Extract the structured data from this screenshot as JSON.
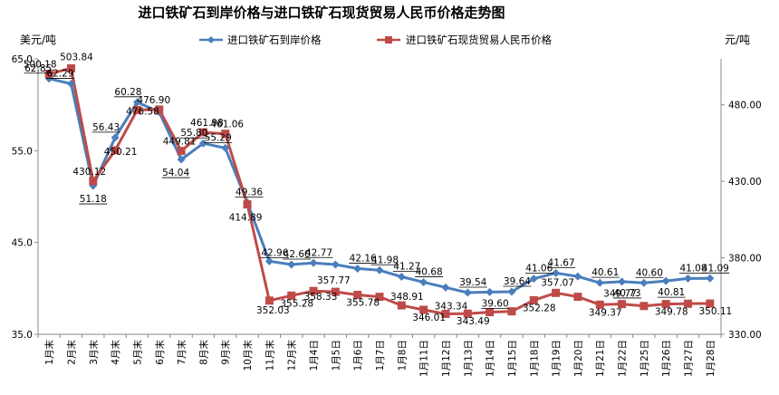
{
  "chart_data": {
    "type": "line",
    "title": "进口铁矿石到岸价格与进口铁矿石现货贸易人民币价格走势图",
    "left_unit": "美元/吨",
    "right_unit": "元/吨",
    "categories": [
      "1月末",
      "2月末",
      "3月末",
      "4月末",
      "5月末",
      "6月末",
      "7月末",
      "8月末",
      "9月末",
      "10月末",
      "11月末",
      "12月末",
      "1月4日",
      "1月5日",
      "1月6日",
      "1月7日",
      "1月8日",
      "1月11日",
      "1月12日",
      "1月13日",
      "1月14日",
      "1月15日",
      "1月18日",
      "1月19日",
      "1月20日",
      "1月21日",
      "1月22日",
      "1月25日",
      "1月26日",
      "1月27日",
      "1月28日"
    ],
    "left_axis": {
      "min": 35.0,
      "max": 65.0,
      "ticks": [
        "35.0",
        "45.0",
        "55.0",
        "65.0"
      ]
    },
    "right_axis": {
      "min": 330.0,
      "max": 510.0,
      "ticks": [
        "330.00",
        "380.00",
        "430.00",
        "480.00"
      ]
    },
    "legend_position": "top",
    "grid": false,
    "series": [
      {
        "name": "进口铁矿石到岸价格",
        "axis": "left",
        "color": "#4a7ebb",
        "marker": "diamond",
        "values": [
          62.85,
          62.29,
          51.18,
          56.43,
          60.28,
          59.2,
          54.04,
          55.8,
          55.29,
          49.36,
          42.96,
          42.6,
          42.77,
          42.6,
          42.16,
          41.98,
          41.27,
          40.68,
          40.1,
          39.54,
          39.6,
          39.64,
          41.06,
          41.67,
          41.3,
          40.61,
          40.73,
          40.6,
          40.81,
          41.08,
          41.09
        ],
        "labels": [
          "62.85",
          "62.29",
          "51.18",
          "56.43",
          "60.28",
          "",
          "54.04",
          "55.80",
          "55.29",
          "49.36",
          "42.96",
          "42.60",
          "42.77",
          "",
          "42.16",
          "41.98",
          "41.27",
          "40.68",
          "",
          "39.54",
          "39.60",
          "39.64",
          "41.06",
          "41.67",
          "",
          "40.61",
          "40.73",
          "40.60",
          "40.81",
          "41.08",
          "41.09"
        ]
      },
      {
        "name": "进口铁矿石现货贸易人民币价格",
        "axis": "right",
        "color": "#be4b48",
        "marker": "square",
        "values": [
          500.18,
          503.84,
          430.12,
          450.21,
          476.58,
          476.9,
          449.81,
          461.98,
          461.06,
          414.89,
          352.03,
          355.28,
          358.33,
          357.77,
          355.78,
          354.5,
          348.91,
          346.01,
          343.34,
          343.49,
          344.5,
          345.0,
          352.28,
          357.07,
          354.5,
          349.37,
          349.77,
          348.5,
          349.78,
          350.0,
          350.11
        ],
        "labels": [
          "500.18",
          "503.84",
          "430.12",
          "450.21",
          "476.58",
          "476.90",
          "449.81",
          "461.98",
          "461.06",
          "414.89",
          "352.03",
          "355.28",
          "358.33",
          "357.77",
          "355.78",
          "",
          "348.91",
          "346.01",
          "343.34",
          "343.49",
          "",
          "",
          "352.28",
          "357.07",
          "",
          "349.37",
          "349.77",
          "",
          "349.78",
          "",
          "350.11"
        ]
      }
    ]
  }
}
